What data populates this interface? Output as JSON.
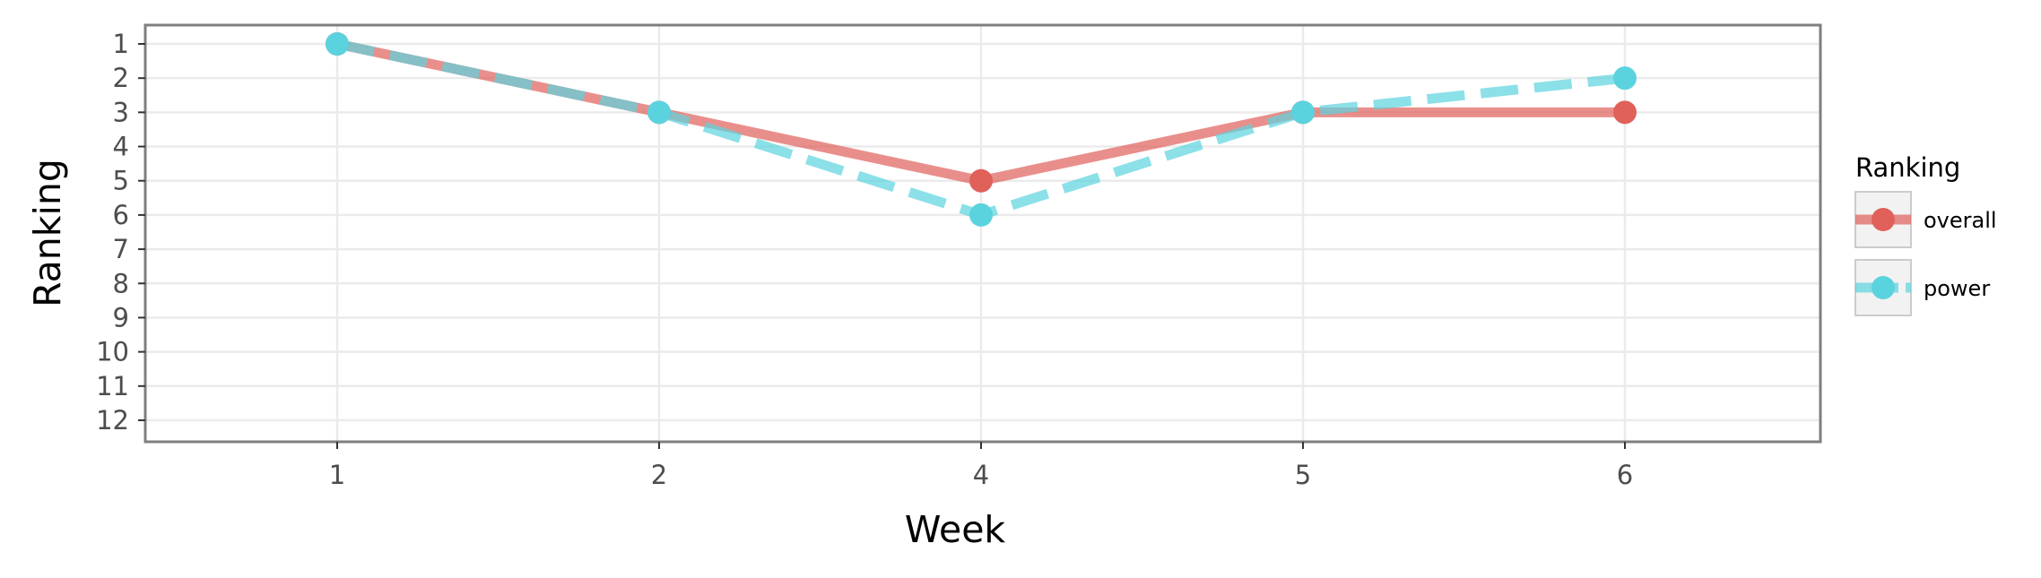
{
  "chart_data": {
    "type": "line",
    "x_type": "categorical",
    "categories": [
      "1",
      "2",
      "4",
      "5",
      "6"
    ],
    "xlabel": "Week",
    "ylabel": "Ranking",
    "y_reversed": true,
    "y_ticks": [
      1,
      2,
      3,
      4,
      5,
      6,
      7,
      8,
      9,
      10,
      11,
      12
    ],
    "legend": {
      "title": "Ranking",
      "placement": "right"
    },
    "grid": true,
    "series": [
      {
        "name": "overall",
        "values": [
          1,
          3,
          5,
          3,
          3
        ],
        "color": "#e0605a",
        "linestyle": "solid"
      },
      {
        "name": "power",
        "values": [
          1,
          3,
          6,
          3,
          2
        ],
        "color": "#5bd3de",
        "linestyle": "dashed"
      }
    ]
  }
}
